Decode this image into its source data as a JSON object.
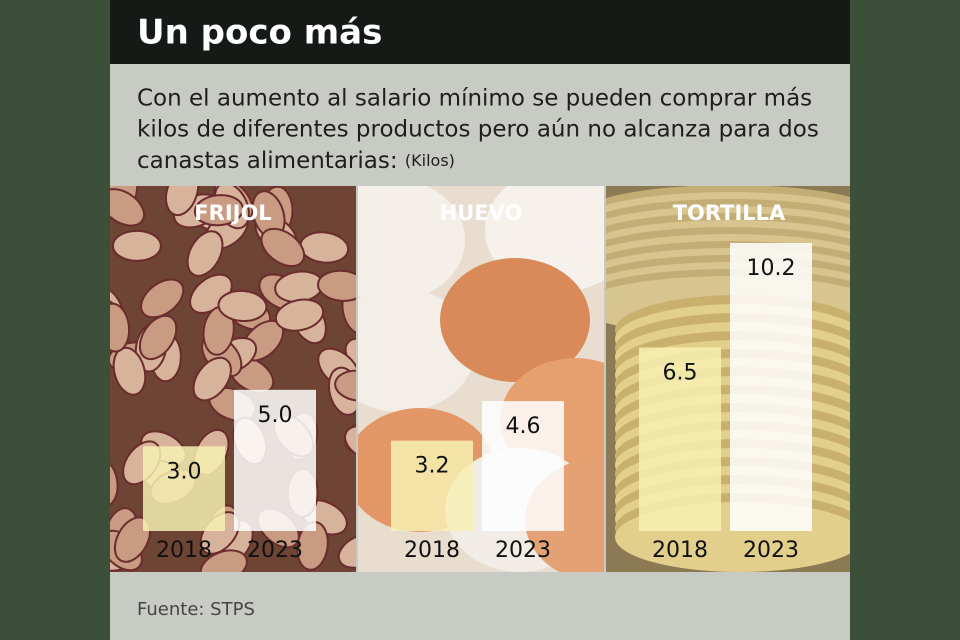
{
  "chart_data": {
    "type": "bar",
    "title": "Un poco más",
    "subtitle": [
      "Con el aumento al salario mínimo se pueden comprar más",
      "kilos de diferentes productos pero aún no alcanza para dos",
      "canastas alimentarias:"
    ],
    "unit": "(Kilos)",
    "source": "Fuente: STPS",
    "categories": [
      "FRIJOL",
      "HUEVO",
      "TORTILLA"
    ],
    "series": [
      {
        "name": "2018",
        "color": "#f7f0b3",
        "values": [
          3.0,
          3.2,
          6.5
        ],
        "value_labels": [
          "3.0",
          "3.2",
          "6.5"
        ]
      },
      {
        "name": "2023",
        "color": "#ffffff",
        "values": [
          5.0,
          4.6,
          10.2
        ],
        "value_labels": [
          "5.0",
          "4.6",
          "10.2"
        ]
      }
    ]
  }
}
